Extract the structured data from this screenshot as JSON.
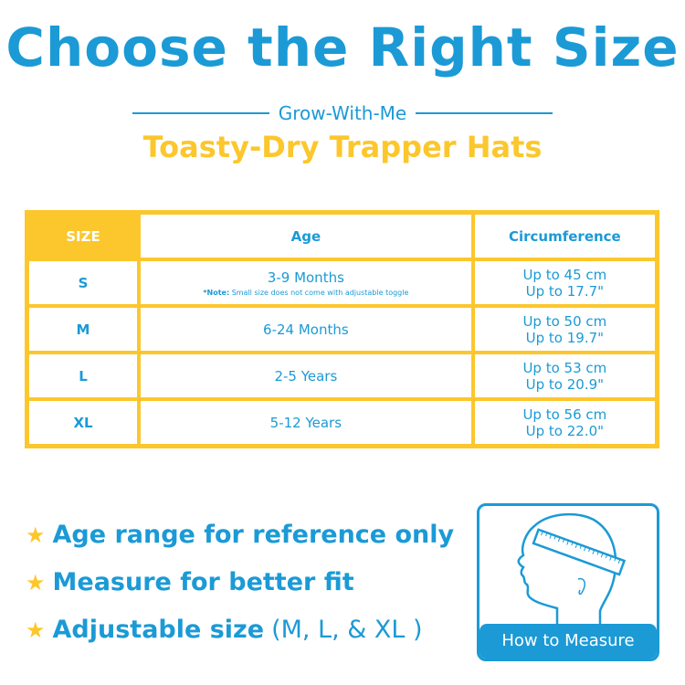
{
  "title": "Choose the Right Size",
  "subtitle": "Grow-With-Me",
  "product": "Toasty-Dry Trapper Hats",
  "colors": {
    "blue": "#1b9ad6",
    "yellow": "#fcc72c"
  },
  "table": {
    "headers": [
      "SIZE",
      "Age",
      "Circumference"
    ],
    "rows": [
      {
        "size": "S",
        "age": "3-9 Months",
        "note_label": "*Note:",
        "note": "Small size does not come with adjustable toggle",
        "cm": "Up to 45 cm",
        "in": "Up to 17.7\""
      },
      {
        "size": "M",
        "age": "6-24 Months",
        "cm": "Up to 50 cm",
        "in": "Up to 19.7\""
      },
      {
        "size": "L",
        "age": "2-5 Years",
        "cm": "Up to 53 cm",
        "in": "Up to 20.9\""
      },
      {
        "size": "XL",
        "age": "5-12 Years",
        "cm": "Up to 56 cm",
        "in": "Up to 22.0\""
      }
    ]
  },
  "bullets": [
    {
      "text": "Age range for reference only"
    },
    {
      "text": "Measure for better fit"
    },
    {
      "text": "Adjustable size",
      "suffix": "(M, L, & XL )"
    }
  ],
  "measure_label": "How to Measure"
}
